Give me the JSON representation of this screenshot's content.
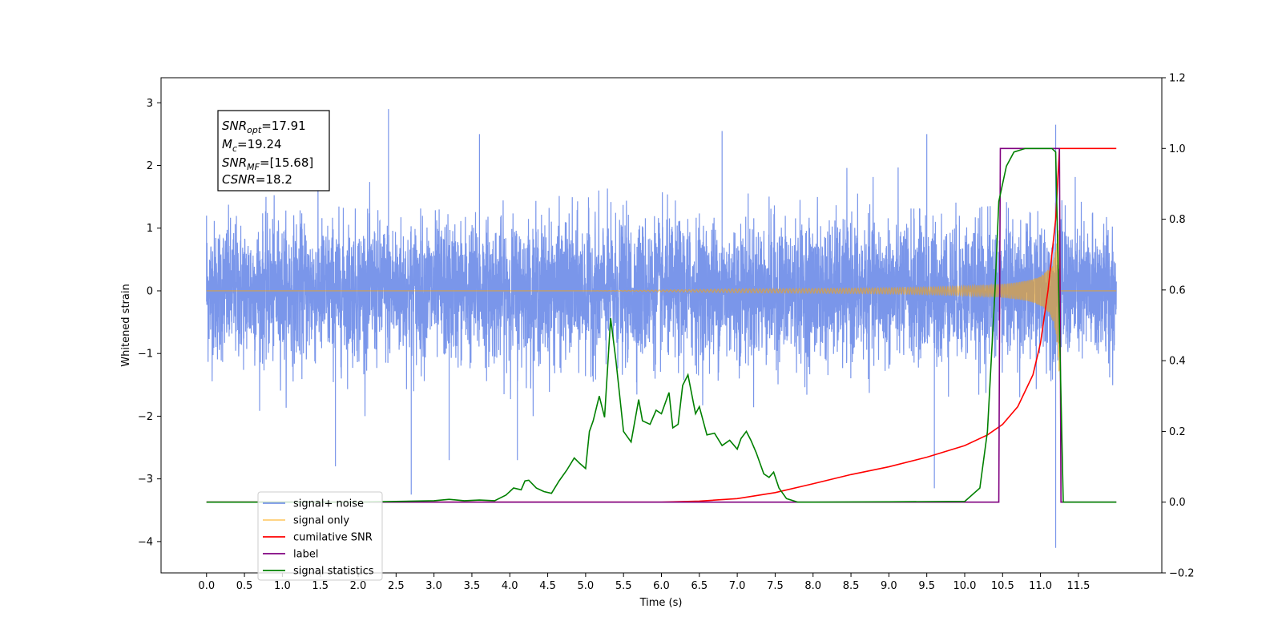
{
  "chart_data": {
    "type": "line",
    "xlabel": "Time (s)",
    "ylabel": "Whitened strain",
    "xlim": [
      -0.6,
      12.6
    ],
    "ylim": [
      -4.5,
      3.4
    ],
    "ylim_right": [
      -0.2,
      1.2
    ],
    "x_ticks": [
      0.0,
      0.5,
      1.0,
      1.5,
      2.0,
      2.5,
      3.0,
      3.5,
      4.0,
      4.5,
      5.0,
      5.5,
      6.0,
      6.5,
      7.0,
      7.5,
      8.0,
      8.5,
      9.0,
      9.5,
      10.0,
      10.5,
      11.0,
      11.5
    ],
    "x_tick_labels": [
      "0.0",
      "0.5",
      "1.0",
      "1.5",
      "2.0",
      "2.5",
      "3.0",
      "3.5",
      "4.0",
      "4.5",
      "5.0",
      "5.5",
      "6.0",
      "6.5",
      "7.0",
      "7.5",
      "8.0",
      "8.5",
      "9.0",
      "9.5",
      "10.0",
      "10.5",
      "11.0",
      "11.5"
    ],
    "y_ticks": [
      3,
      2,
      1,
      0,
      -1,
      -2,
      -3,
      -4
    ],
    "y_tick_labels": [
      "3",
      "2",
      "1",
      "0",
      "−1",
      "−2",
      "−3",
      "−4"
    ],
    "y2_ticks": [
      1.2,
      1.0,
      0.8,
      0.6,
      0.4,
      0.2,
      0.0,
      -0.2
    ],
    "y2_tick_labels": [
      "1.2",
      "1.0",
      "0.8",
      "0.6",
      "0.4",
      "0.2",
      "0.0",
      "−0.2"
    ],
    "grid": false,
    "legend_position": "lower-left",
    "annotation": {
      "snr_opt": {
        "name": "SNR",
        "sub": "opt",
        "value": "=17.91"
      },
      "mc": {
        "name": "M",
        "sub": "c",
        "value": "=19.24"
      },
      "snr_mf": {
        "name": "SNR",
        "sub": "MF",
        "value": "=[15.68]"
      },
      "csnr": {
        "name": "CSNR",
        "sub": "",
        "value": "=18.2"
      }
    },
    "series": [
      {
        "name": "signal+ noise",
        "axis": "left",
        "color": "#4169e1",
        "opacity": 0.7,
        "description_values": {
          "x_start": 0.0,
          "x_end": 12.0,
          "envelope_high": 1.5,
          "envelope_low": -1.5,
          "max": 2.9,
          "min": -4.1
        },
        "spikes": [
          [
            0.0,
            1.2
          ],
          [
            2.4,
            2.9
          ],
          [
            2.7,
            -3.25
          ],
          [
            1.7,
            -2.8
          ],
          [
            3.2,
            -2.7
          ],
          [
            4.1,
            -2.7
          ],
          [
            9.6,
            -3.15
          ],
          [
            11.2,
            -4.1
          ],
          [
            11.2,
            2.65
          ],
          [
            6.8,
            2.55
          ],
          [
            9.5,
            2.5
          ],
          [
            3.6,
            2.5
          ]
        ]
      },
      {
        "name": "signal only",
        "axis": "left",
        "color": "#ffa500",
        "opacity": 0.55,
        "description_values": {
          "x_start": 0.0,
          "x_end": 12.0,
          "merger_time": 11.25,
          "peak": 3.05
        }
      },
      {
        "name": "cumilative SNR",
        "axis": "right",
        "color": "#ff0000",
        "x": [
          0.0,
          6.0,
          6.5,
          7.0,
          7.5,
          8.0,
          8.5,
          9.0,
          9.5,
          10.0,
          10.3,
          10.5,
          10.7,
          10.9,
          11.0,
          11.1,
          11.2,
          11.25,
          12.0
        ],
        "y": [
          0.0,
          0.0,
          0.003,
          0.01,
          0.027,
          0.052,
          0.078,
          0.1,
          0.127,
          0.16,
          0.19,
          0.22,
          0.27,
          0.36,
          0.45,
          0.6,
          0.8,
          1.0,
          1.0
        ]
      },
      {
        "name": "label",
        "axis": "right",
        "color": "#800080",
        "x": [
          0.0,
          10.45,
          10.47,
          11.25,
          11.27,
          12.0
        ],
        "y": [
          0.0,
          0.0,
          1.0,
          1.0,
          0.0,
          0.0
        ]
      },
      {
        "name": "signal statistics",
        "axis": "right",
        "color": "#008000",
        "x": [
          0.0,
          2.0,
          2.5,
          3.0,
          3.2,
          3.4,
          3.6,
          3.8,
          3.95,
          4.05,
          4.15,
          4.2,
          4.25,
          4.35,
          4.45,
          4.55,
          4.65,
          4.75,
          4.85,
          4.92,
          5.0,
          5.05,
          5.1,
          5.18,
          5.25,
          5.33,
          5.4,
          5.5,
          5.6,
          5.7,
          5.75,
          5.85,
          5.93,
          6.0,
          6.1,
          6.15,
          6.22,
          6.28,
          6.35,
          6.45,
          6.5,
          6.6,
          6.7,
          6.8,
          6.9,
          7.0,
          7.05,
          7.12,
          7.18,
          7.25,
          7.35,
          7.42,
          7.48,
          7.55,
          7.65,
          7.8,
          8.0,
          9.0,
          10.0,
          10.2,
          10.3,
          10.4,
          10.45,
          10.55,
          10.65,
          10.8,
          11.0,
          11.15,
          11.2,
          11.25,
          11.3,
          11.35,
          12.0
        ],
        "y": [
          0.0,
          0.0,
          0.002,
          0.004,
          0.008,
          0.004,
          0.006,
          0.004,
          0.02,
          0.04,
          0.035,
          0.06,
          0.062,
          0.04,
          0.03,
          0.025,
          0.06,
          0.09,
          0.125,
          0.11,
          0.095,
          0.2,
          0.23,
          0.3,
          0.24,
          0.52,
          0.4,
          0.2,
          0.17,
          0.29,
          0.23,
          0.22,
          0.26,
          0.25,
          0.31,
          0.21,
          0.22,
          0.33,
          0.36,
          0.25,
          0.27,
          0.19,
          0.195,
          0.16,
          0.175,
          0.15,
          0.18,
          0.2,
          0.175,
          0.14,
          0.08,
          0.07,
          0.085,
          0.04,
          0.01,
          0.0,
          0.0,
          0.001,
          0.002,
          0.04,
          0.2,
          0.6,
          0.85,
          0.95,
          0.99,
          1.0,
          1.0,
          1.0,
          0.99,
          0.5,
          0.0,
          0.0,
          0.0
        ]
      }
    ]
  }
}
